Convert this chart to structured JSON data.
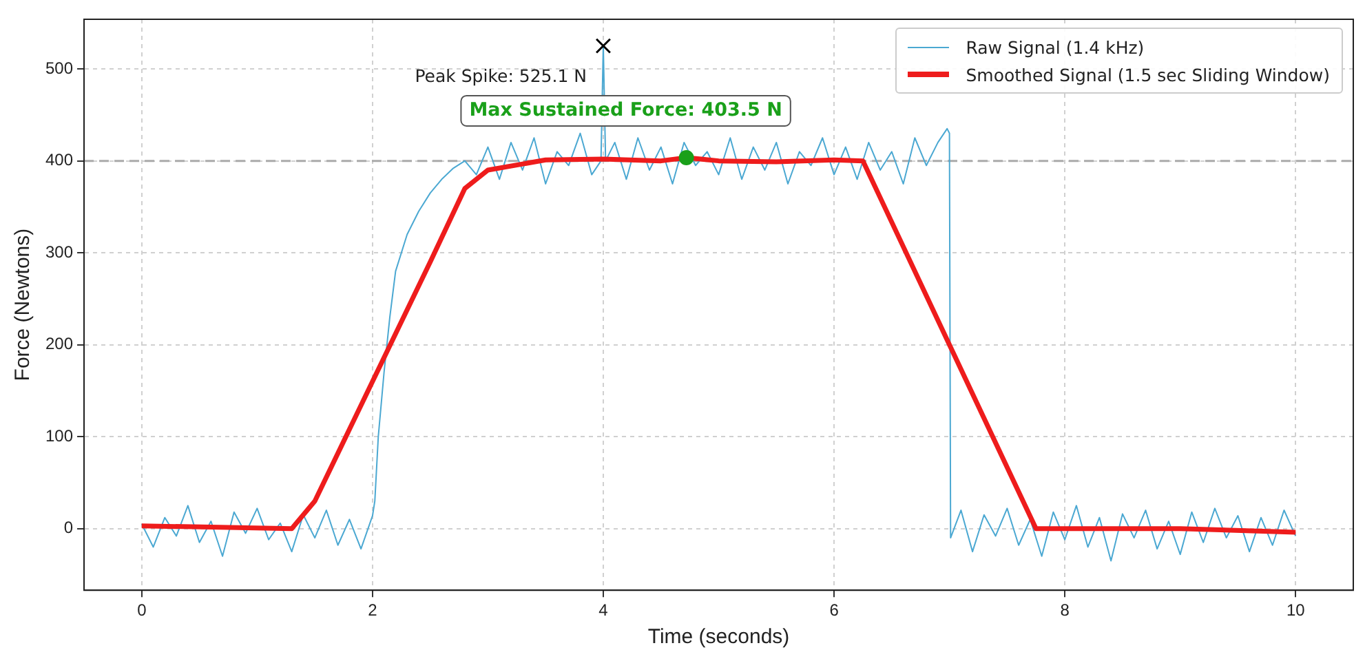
{
  "chart_data": {
    "type": "line",
    "xlabel": "Time (seconds)",
    "ylabel": "Force (Newtons)",
    "xlim": [
      -0.5,
      10.5
    ],
    "xticks": [
      0,
      2,
      4,
      6,
      8,
      10
    ],
    "ylim": [
      -67,
      554
    ],
    "yticks": [
      0,
      100,
      200,
      300,
      400,
      500
    ],
    "grid": true,
    "legend": "top right",
    "marker": "none",
    "series": [
      {
        "name": "Raw Signal (1.4 kHz)",
        "color": "#4ba8d2",
        "line_style": "solid",
        "x": [
          0,
          0.1,
          0.2,
          0.3,
          0.4,
          0.5,
          0.6,
          0.7,
          0.8,
          0.9,
          1.0,
          1.1,
          1.2,
          1.3,
          1.4,
          1.5,
          1.6,
          1.7,
          1.8,
          1.9,
          2.0,
          2.02,
          2.05,
          2.1,
          2.15,
          2.2,
          2.3,
          2.4,
          2.5,
          2.6,
          2.7,
          2.8,
          2.9,
          3.0,
          3.1,
          3.2,
          3.3,
          3.4,
          3.5,
          3.6,
          3.7,
          3.8,
          3.9,
          3.98,
          4.0,
          4.02,
          4.1,
          4.2,
          4.3,
          4.4,
          4.5,
          4.6,
          4.7,
          4.8,
          4.9,
          5.0,
          5.1,
          5.2,
          5.3,
          5.4,
          5.5,
          5.6,
          5.7,
          5.8,
          5.9,
          6.0,
          6.1,
          6.2,
          6.3,
          6.4,
          6.5,
          6.6,
          6.7,
          6.8,
          6.9,
          6.98,
          7.0,
          7.01,
          7.1,
          7.2,
          7.3,
          7.4,
          7.5,
          7.6,
          7.7,
          7.8,
          7.9,
          8.0,
          8.1,
          8.2,
          8.3,
          8.4,
          8.5,
          8.6,
          8.7,
          8.8,
          8.9,
          9.0,
          9.1,
          9.2,
          9.3,
          9.4,
          9.5,
          9.6,
          9.7,
          9.8,
          9.9,
          10.0
        ],
        "values": [
          5,
          -20,
          12,
          -8,
          25,
          -15,
          8,
          -30,
          18,
          -5,
          22,
          -12,
          6,
          -25,
          15,
          -10,
          20,
          -18,
          10,
          -22,
          14,
          30,
          100,
          170,
          230,
          280,
          320,
          345,
          365,
          380,
          392,
          400,
          385,
          415,
          380,
          420,
          390,
          425,
          375,
          410,
          395,
          430,
          385,
          400,
          525.1,
          400,
          420,
          380,
          425,
          390,
          415,
          375,
          420,
          395,
          410,
          385,
          425,
          380,
          415,
          390,
          420,
          375,
          410,
          395,
          425,
          385,
          415,
          380,
          420,
          390,
          410,
          375,
          425,
          395,
          420,
          435,
          430,
          -10,
          20,
          -25,
          15,
          -8,
          22,
          -18,
          10,
          -30,
          18,
          -12,
          25,
          -20,
          12,
          -35,
          16,
          -10,
          20,
          -22,
          8,
          -28,
          18,
          -15,
          22,
          -10,
          14,
          -25,
          12,
          -18,
          20,
          -8
        ]
      },
      {
        "name": "Smoothed Signal (1.5 sec Sliding Window)",
        "color": "#ee1c1c",
        "line_style": "solid",
        "x": [
          0,
          1.3,
          1.5,
          2.0,
          2.5,
          2.8,
          3.0,
          3.5,
          4.0,
          4.5,
          4.72,
          5.0,
          5.5,
          6.0,
          6.25,
          7.0,
          7.75,
          9.0,
          10.0
        ],
        "values": [
          3,
          0,
          30,
          160,
          290,
          370,
          390,
          401,
          402,
          400,
          403.5,
          400,
          399,
          401,
          400,
          200,
          0,
          0,
          -4
        ]
      },
      {
        "type": "scatter",
        "marker": "cross",
        "color": "#000000",
        "x": [
          4.0
        ],
        "values": [
          525.1
        ]
      },
      {
        "type": "scatter",
        "marker": "circle",
        "color": "#1aa01a",
        "x": [
          4.72
        ],
        "values": [
          403.5
        ]
      }
    ],
    "ref_lines": [
      {
        "axis": "y",
        "value": 400,
        "color": "#aaaaaa",
        "line_style": "dashed"
      }
    ],
    "annotations": [
      {
        "text": "Peak Spike: 525.1 N",
        "x": 4.0,
        "y": 525.1
      },
      {
        "text": "Max Sustained Force: 403.5 N",
        "x": 4.72,
        "y": 403.5
      }
    ]
  }
}
